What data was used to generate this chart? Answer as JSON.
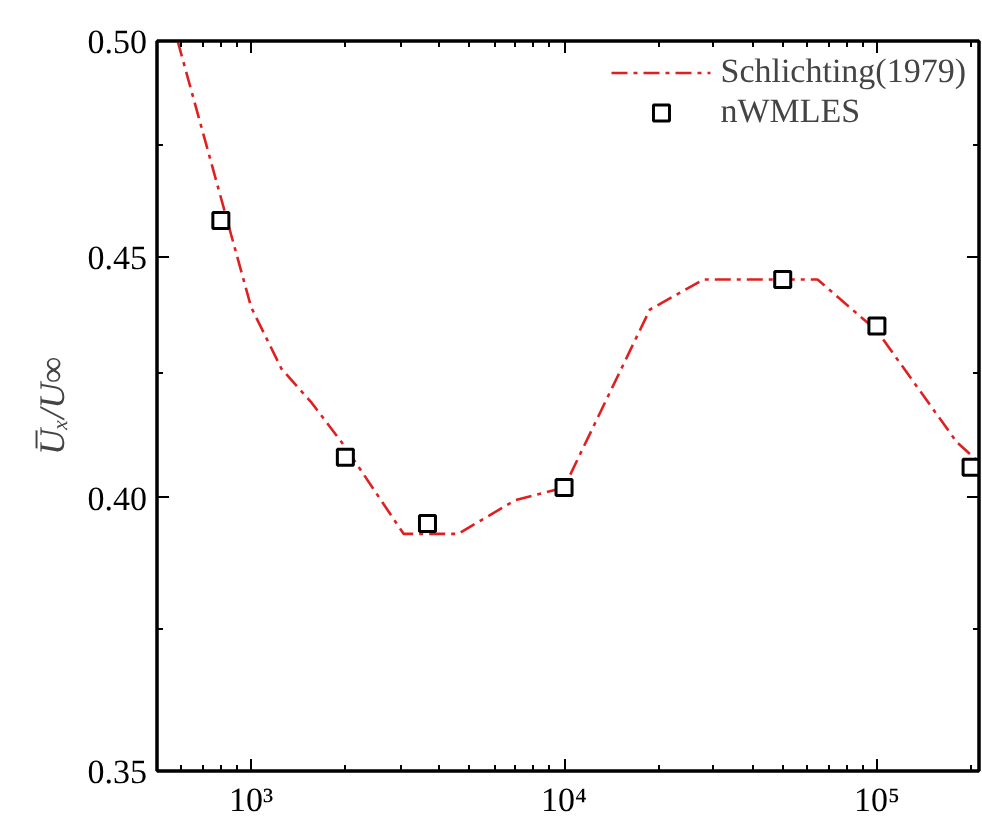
{
  "chart_data": {
    "type": "line",
    "ylabel": "U̅ₓ/U∞",
    "log": "xy",
    "xlim": [
      500,
      212000
    ],
    "ylim": [
      0.35,
      0.5
    ],
    "xticks": [
      {
        "value": 1000,
        "label": "10³"
      },
      {
        "value": 10000,
        "label": "10⁴"
      },
      {
        "value": 100000,
        "label": "10⁵"
      }
    ],
    "yticks": [
      0.35,
      {
        "value": 0.4,
        "label": "0.40"
      },
      0.45,
      {
        "value": 0.5,
        "label": "0.50"
      }
    ],
    "grid": false,
    "legend": "top right",
    "series": [
      {
        "name": "Schlichting(1979)",
        "line_style": "dashdot",
        "marker": "none",
        "color": "#e02020",
        "x": [
          582,
          1000,
          1250,
          1560,
          2000,
          3070,
          4590,
          6970,
          10000,
          18800,
          27900,
          64600,
          100000,
          180000,
          212000
        ],
        "values": [
          0.5,
          0.439,
          0.426,
          0.419,
          0.41,
          0.393,
          0.393,
          0.3995,
          0.402,
          0.4385,
          0.445,
          0.445,
          0.434,
          0.411,
          0.407
        ]
      },
      {
        "name": "nWMLES",
        "type": "scatter",
        "marker": "square",
        "color": "#000000",
        "x": [
          800,
          2000,
          3660,
          10000,
          50000,
          100000,
          200000
        ],
        "values": [
          0.458,
          0.408,
          0.395,
          0.402,
          0.445,
          0.435,
          0.406
        ]
      }
    ]
  }
}
